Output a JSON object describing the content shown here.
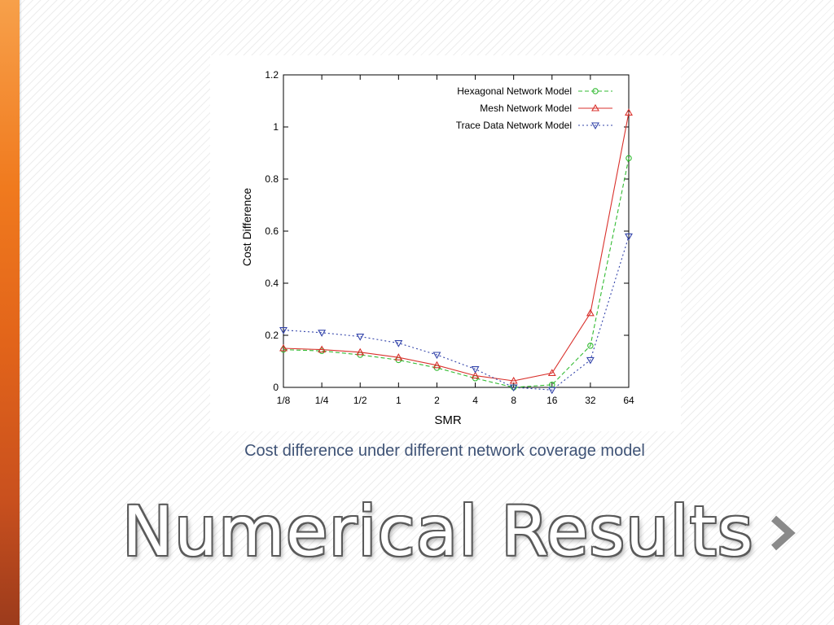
{
  "slide": {
    "caption": "Cost difference under different network coverage model",
    "title": "Numerical Results",
    "next_icon": "chevron-right-icon"
  },
  "colors": {
    "sidebar_top": "#f7a04a",
    "sidebar_bottom": "#9c3b1c",
    "caption": "#3f5376",
    "hexagonal": "#33bb33",
    "mesh": "#d9312c",
    "trace": "#3344aa"
  },
  "chart_data": {
    "type": "line",
    "title": "",
    "xlabel": "SMR",
    "ylabel": "Cost Difference",
    "categories": [
      "1/8",
      "1/4",
      "1/2",
      "1",
      "2",
      "4",
      "8",
      "16",
      "32",
      "64"
    ],
    "ylim": [
      0,
      1.2
    ],
    "yticks": [
      "0",
      "0.2",
      "0.4",
      "0.6",
      "0.8",
      "1",
      "1.2"
    ],
    "legend_position": "top-right",
    "grid": false,
    "series": [
      {
        "name": "Hexagonal Network Model",
        "marker": "circle",
        "dash": "dashed",
        "color": "#33bb33",
        "values": [
          0.145,
          0.14,
          0.125,
          0.105,
          0.075,
          0.035,
          0.0,
          0.01,
          0.16,
          0.88
        ]
      },
      {
        "name": "Mesh Network Model",
        "marker": "triangle-up",
        "dash": "solid",
        "color": "#d9312c",
        "values": [
          0.15,
          0.145,
          0.135,
          0.115,
          0.085,
          0.045,
          0.025,
          0.055,
          0.285,
          1.055
        ]
      },
      {
        "name": "Trace Data Network Model",
        "marker": "triangle-down",
        "dash": "dotted",
        "color": "#3344aa",
        "values": [
          0.22,
          0.21,
          0.195,
          0.17,
          0.125,
          0.07,
          0.0,
          -0.01,
          0.105,
          0.58
        ]
      }
    ]
  }
}
